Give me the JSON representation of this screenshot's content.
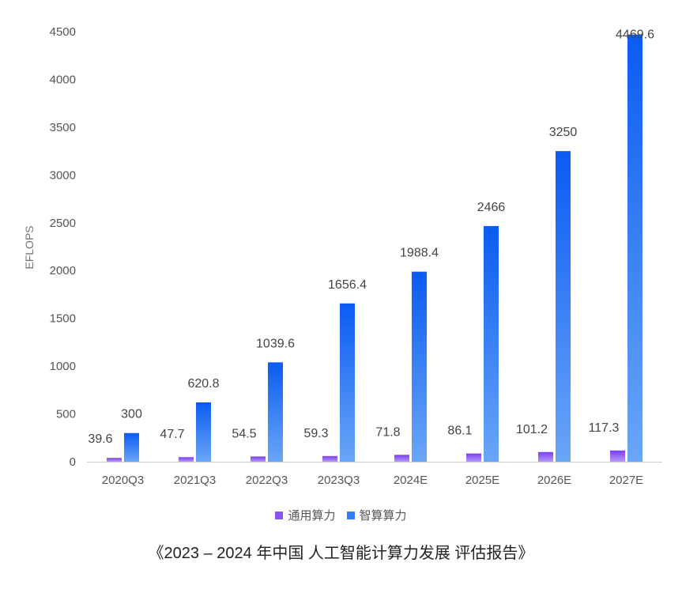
{
  "chart_data": {
    "type": "bar",
    "categories": [
      "2020Q3",
      "2021Q3",
      "2022Q3",
      "2023Q3",
      "2024E",
      "2025E",
      "2026E",
      "2027E"
    ],
    "series": [
      {
        "name": "通用算力",
        "values": [
          39.6,
          47.7,
          54.5,
          59.3,
          71.8,
          86.1,
          101.2,
          117.3
        ],
        "color_top": "#7b3cf0",
        "color_bottom": "#b69af7"
      },
      {
        "name": "智算算力",
        "values": [
          300,
          620.8,
          1039.6,
          1656.4,
          1988.4,
          2466,
          3250,
          4469.6
        ],
        "color_top": "#0a5cf2",
        "color_bottom": "#6aa6f7"
      }
    ],
    "data_labels": [
      [
        "39.6",
        "47.7",
        "54.5",
        "59.3",
        "71.8",
        "86.1",
        "101.2",
        "117.3"
      ],
      [
        "300",
        "620.8",
        "1039.6",
        "1656.4",
        "1988.4",
        "2466",
        "3250",
        "4469.6"
      ]
    ],
    "ylabel": "EFLOPS",
    "ylim": [
      0,
      4500
    ],
    "yticks": [
      "0",
      "500",
      "1000",
      "1500",
      "2000",
      "2500",
      "3000",
      "3500",
      "4000",
      "4500"
    ],
    "grid": false,
    "legend_position": "bottom"
  },
  "caption": "《2023 – 2024 年中国 人工智能计算力发展 评估报告》",
  "legend": [
    {
      "label": "通用算力",
      "color": "#8a52f3"
    },
    {
      "label": "智算算力",
      "color": "#2f7cf5"
    }
  ]
}
